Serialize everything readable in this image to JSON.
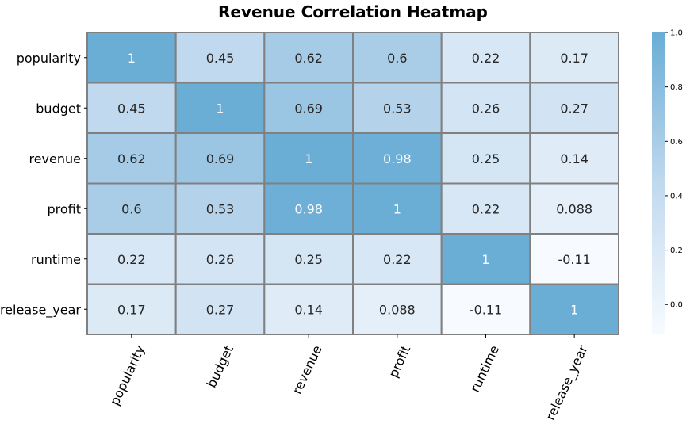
{
  "chart_data": {
    "type": "heatmap",
    "title": "Revenue Correlation Heatmap",
    "rows": [
      "popularity",
      "budget",
      "revenue",
      "profit",
      "runtime",
      "release_year"
    ],
    "columns": [
      "popularity",
      "budget",
      "revenue",
      "profit",
      "runtime",
      "release_year"
    ],
    "values": [
      [
        1,
        0.45,
        0.62,
        0.6,
        0.22,
        0.17
      ],
      [
        0.45,
        1,
        0.69,
        0.53,
        0.26,
        0.27
      ],
      [
        0.62,
        0.69,
        1,
        0.98,
        0.25,
        0.14
      ],
      [
        0.6,
        0.53,
        0.98,
        1,
        0.22,
        0.088
      ],
      [
        0.22,
        0.26,
        0.25,
        0.22,
        1,
        -0.11
      ],
      [
        0.17,
        0.27,
        0.14,
        0.088,
        -0.11,
        1
      ]
    ],
    "value_labels": [
      [
        "1",
        "0.45",
        "0.62",
        "0.6",
        "0.22",
        "0.17"
      ],
      [
        "0.45",
        "1",
        "0.69",
        "0.53",
        "0.26",
        "0.27"
      ],
      [
        "0.62",
        "0.69",
        "1",
        "0.98",
        "0.25",
        "0.14"
      ],
      [
        "0.6",
        "0.53",
        "0.98",
        "1",
        "0.22",
        "0.088"
      ],
      [
        "0.22",
        "0.26",
        "0.25",
        "0.22",
        "1",
        "-0.11"
      ],
      [
        "0.17",
        "0.27",
        "0.14",
        "0.088",
        "-0.11",
        "1"
      ]
    ],
    "colorbar": {
      "range": [
        -0.11,
        1
      ],
      "ticks": [
        0.0,
        0.2,
        0.4,
        0.6,
        0.8,
        1.0
      ],
      "tick_labels": [
        "0.0",
        "0.2",
        "0.4",
        "0.6",
        "0.8",
        "1.0"
      ],
      "color_low": "#f7fbff",
      "color_mid": "#c1d9ee",
      "color_high": "#6aadd5"
    },
    "cell_border_color": "#808080",
    "text_color_dark": "#262626",
    "text_color_light": "#ffffff",
    "light_text_threshold": 0.9,
    "legend_placement": "right"
  }
}
